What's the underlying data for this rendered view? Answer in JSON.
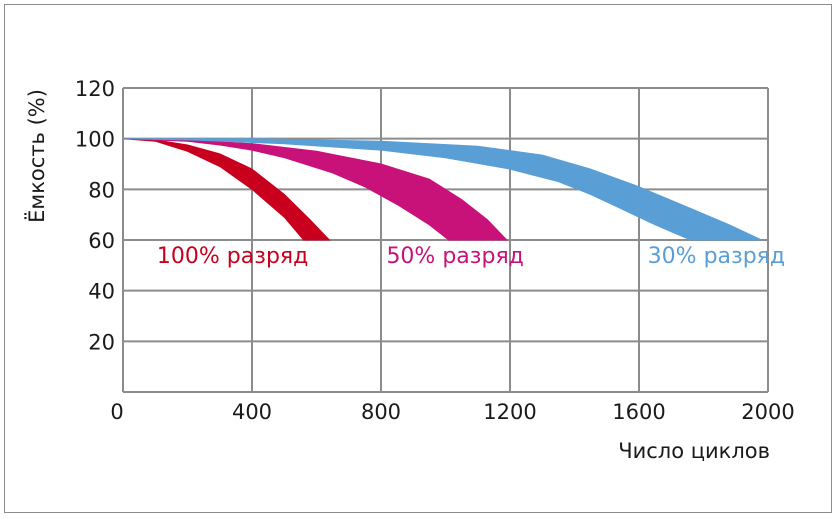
{
  "chart_data": {
    "type": "area",
    "xlabel": "Число циклов",
    "ylabel": "Ёмкость (%)",
    "xlim": [
      0,
      2000
    ],
    "ylim": [
      0,
      120
    ],
    "x_ticks": [
      0,
      400,
      800,
      1200,
      1600,
      2000
    ],
    "y_ticks": [
      20,
      40,
      60,
      80,
      100,
      120
    ],
    "grid": true,
    "series": [
      {
        "name": "100% разряд",
        "color": "#c8001e",
        "label_at": [
          340,
          51
        ],
        "upper": [
          [
            0,
            100
          ],
          [
            100,
            99.5
          ],
          [
            200,
            97.5
          ],
          [
            300,
            94
          ],
          [
            400,
            88
          ],
          [
            500,
            78
          ],
          [
            580,
            68
          ],
          [
            640,
            60
          ]
        ],
        "lower": [
          [
            560,
            60
          ],
          [
            500,
            69
          ],
          [
            400,
            80
          ],
          [
            300,
            89
          ],
          [
            200,
            95
          ],
          [
            100,
            99
          ],
          [
            0,
            100
          ]
        ]
      },
      {
        "name": "50% разряд",
        "color": "#c8127a",
        "label_at": [
          1030,
          51
        ],
        "upper": [
          [
            0,
            100
          ],
          [
            200,
            99.5
          ],
          [
            400,
            98
          ],
          [
            600,
            95
          ],
          [
            800,
            90
          ],
          [
            950,
            84
          ],
          [
            1050,
            76
          ],
          [
            1130,
            68
          ],
          [
            1190,
            60
          ]
        ],
        "lower": [
          [
            1010,
            60
          ],
          [
            950,
            66
          ],
          [
            850,
            74
          ],
          [
            750,
            81
          ],
          [
            650,
            86.5
          ],
          [
            500,
            92.5
          ],
          [
            400,
            95.5
          ],
          [
            300,
            97.5
          ],
          [
            200,
            99
          ],
          [
            0,
            100
          ]
        ]
      },
      {
        "name": "30% разряд",
        "color": "#5a9ed6",
        "label_at": [
          1840,
          51
        ],
        "upper": [
          [
            0,
            100
          ],
          [
            400,
            100
          ],
          [
            800,
            99
          ],
          [
            1100,
            97
          ],
          [
            1300,
            93.5
          ],
          [
            1450,
            88
          ],
          [
            1600,
            81
          ],
          [
            1750,
            73
          ],
          [
            1880,
            66
          ],
          [
            1980,
            60
          ]
        ],
        "lower": [
          [
            1760,
            60
          ],
          [
            1650,
            66
          ],
          [
            1550,
            72
          ],
          [
            1450,
            78
          ],
          [
            1350,
            83
          ],
          [
            1200,
            88
          ],
          [
            1000,
            92.5
          ],
          [
            800,
            95.5
          ],
          [
            500,
            98
          ],
          [
            200,
            99.5
          ],
          [
            0,
            100
          ]
        ]
      }
    ]
  }
}
